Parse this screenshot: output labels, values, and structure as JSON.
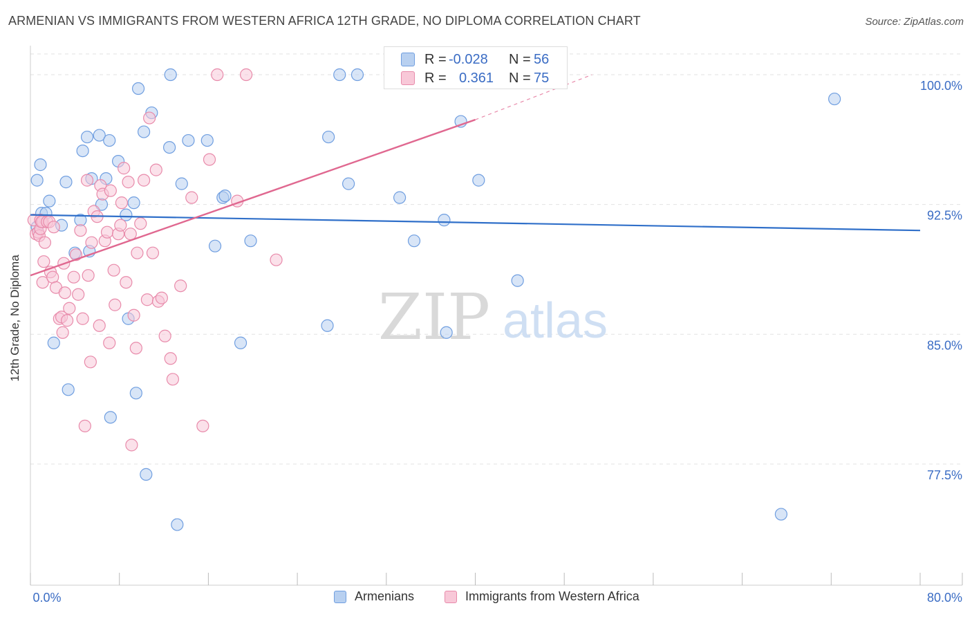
{
  "header": {
    "title": "ARMENIAN VS IMMIGRANTS FROM WESTERN AFRICA 12TH GRADE, NO DIPLOMA CORRELATION CHART",
    "source": "Source: ZipAtlas.com"
  },
  "watermark": {
    "zip": "ZIP",
    "atlas": "atlas"
  },
  "stats_legend": {
    "rows": [
      {
        "r_label": "R =",
        "r_value": "-0.028",
        "n_label": "N =",
        "n_value": "56"
      },
      {
        "r_label": "R =",
        "r_value": "0.361",
        "n_label": "N =",
        "n_value": "75"
      }
    ]
  },
  "colors": {
    "armenians_fill": "#b8d0f0",
    "armenians_stroke": "#6f9ee0",
    "armenians_line": "#2f6fc9",
    "waf_fill": "#f8c8d8",
    "waf_stroke": "#e88aaa",
    "waf_line": "#e06890",
    "tick_label": "#3a6cc4",
    "grid": "#e2e2e2"
  },
  "chart_data": {
    "type": "scatter",
    "title": "ARMENIAN VS IMMIGRANTS FROM WESTERN AFRICA 12TH GRADE, NO DIPLOMA CORRELATION CHART",
    "xlabel": "",
    "ylabel": "12th Grade, No Diploma",
    "xlim": [
      0,
      80
    ],
    "ylim": [
      70.5,
      101.2
    ],
    "x_tick_labels": [
      "0.0%",
      "80.0%"
    ],
    "y_ticks": [
      77.5,
      85.0,
      92.5,
      100.0
    ],
    "y_tick_labels": [
      "77.5%",
      "85.0%",
      "92.5%",
      "100.0%"
    ],
    "grid": true,
    "legend_position": "bottom-center",
    "series": [
      {
        "name": "Armenians",
        "r": -0.028,
        "n": 56,
        "trend": {
          "x": [
            0,
            80
          ],
          "y": [
            91.9,
            91.0
          ]
        },
        "points": [
          [
            1.0,
            92.0
          ],
          [
            0.6,
            91.2
          ],
          [
            0.6,
            93.9
          ],
          [
            0.9,
            94.8
          ],
          [
            1.7,
            92.7
          ],
          [
            1.4,
            92.0
          ],
          [
            2.8,
            91.3
          ],
          [
            3.2,
            93.8
          ],
          [
            3.4,
            81.8
          ],
          [
            4.0,
            89.7
          ],
          [
            4.5,
            91.6
          ],
          [
            4.7,
            95.6
          ],
          [
            5.1,
            96.4
          ],
          [
            5.3,
            89.8
          ],
          [
            5.5,
            94.0
          ],
          [
            6.2,
            96.5
          ],
          [
            6.4,
            92.5
          ],
          [
            6.8,
            94.0
          ],
          [
            7.2,
            80.2
          ],
          [
            7.1,
            96.2
          ],
          [
            7.9,
            95.0
          ],
          [
            8.6,
            91.9
          ],
          [
            8.8,
            85.9
          ],
          [
            9.3,
            92.6
          ],
          [
            9.5,
            81.6
          ],
          [
            9.7,
            99.2
          ],
          [
            10.4,
            76.9
          ],
          [
            10.9,
            97.8
          ],
          [
            10.2,
            96.7
          ],
          [
            12.6,
            100.0
          ],
          [
            12.5,
            95.8
          ],
          [
            13.2,
            74.0
          ],
          [
            13.6,
            93.7
          ],
          [
            14.2,
            96.2
          ],
          [
            15.9,
            96.2
          ],
          [
            16.6,
            90.1
          ],
          [
            17.3,
            92.9
          ],
          [
            17.5,
            93.0
          ],
          [
            18.9,
            84.5
          ],
          [
            19.8,
            90.4
          ],
          [
            26.7,
            85.5
          ],
          [
            26.8,
            96.4
          ],
          [
            27.8,
            100.0
          ],
          [
            28.6,
            93.7
          ],
          [
            29.4,
            100.0
          ],
          [
            32.5,
            100.0
          ],
          [
            33.2,
            92.9
          ],
          [
            34.5,
            90.4
          ],
          [
            37.2,
            91.6
          ],
          [
            37.4,
            85.1
          ],
          [
            38.7,
            97.3
          ],
          [
            40.3,
            93.9
          ],
          [
            43.8,
            88.1
          ],
          [
            2.1,
            84.5
          ],
          [
            67.5,
            74.6
          ],
          [
            72.3,
            98.6
          ]
        ]
      },
      {
        "name": "Immigrants from Western Africa",
        "r": 0.361,
        "n": 75,
        "trend": {
          "x": [
            0,
            40
          ],
          "y": [
            88.4,
            97.4
          ]
        },
        "trend_dashed": {
          "x": [
            40,
            50.5
          ],
          "y": [
            97.4,
            100.0
          ]
        },
        "points": [
          [
            0.3,
            91.6
          ],
          [
            0.5,
            90.8
          ],
          [
            0.7,
            90.9
          ],
          [
            0.8,
            90.7
          ],
          [
            0.9,
            91.1
          ],
          [
            0.9,
            91.6
          ],
          [
            1.1,
            91.5
          ],
          [
            1.0,
            91.5
          ],
          [
            1.1,
            88.0
          ],
          [
            1.2,
            89.2
          ],
          [
            1.3,
            90.3
          ],
          [
            1.5,
            91.5
          ],
          [
            1.7,
            91.5
          ],
          [
            1.8,
            88.6
          ],
          [
            2.0,
            88.3
          ],
          [
            2.1,
            91.2
          ],
          [
            2.3,
            87.7
          ],
          [
            2.6,
            85.9
          ],
          [
            2.8,
            86.0
          ],
          [
            2.9,
            85.1
          ],
          [
            3.0,
            89.1
          ],
          [
            3.1,
            87.4
          ],
          [
            3.5,
            86.5
          ],
          [
            3.9,
            88.3
          ],
          [
            4.1,
            89.6
          ],
          [
            4.3,
            87.3
          ],
          [
            4.5,
            91.0
          ],
          [
            4.7,
            85.9
          ],
          [
            5.1,
            93.9
          ],
          [
            5.2,
            88.4
          ],
          [
            5.4,
            83.4
          ],
          [
            5.5,
            90.3
          ],
          [
            5.7,
            92.1
          ],
          [
            6.0,
            91.8
          ],
          [
            6.2,
            85.5
          ],
          [
            6.3,
            93.6
          ],
          [
            6.5,
            93.1
          ],
          [
            6.7,
            90.4
          ],
          [
            6.9,
            90.9
          ],
          [
            7.1,
            84.5
          ],
          [
            7.2,
            93.3
          ],
          [
            7.5,
            88.7
          ],
          [
            7.6,
            86.7
          ],
          [
            7.9,
            90.8
          ],
          [
            8.1,
            91.3
          ],
          [
            8.2,
            92.6
          ],
          [
            8.4,
            94.6
          ],
          [
            8.6,
            88.0
          ],
          [
            8.8,
            93.8
          ],
          [
            9.0,
            90.8
          ],
          [
            9.3,
            86.1
          ],
          [
            9.5,
            84.2
          ],
          [
            9.6,
            89.7
          ],
          [
            9.9,
            91.4
          ],
          [
            10.2,
            93.9
          ],
          [
            10.5,
            87.0
          ],
          [
            10.7,
            97.5
          ],
          [
            11.0,
            89.7
          ],
          [
            11.3,
            94.5
          ],
          [
            11.5,
            86.9
          ],
          [
            11.8,
            87.1
          ],
          [
            12.1,
            84.9
          ],
          [
            12.6,
            83.6
          ],
          [
            12.8,
            82.4
          ],
          [
            13.5,
            87.8
          ],
          [
            14.5,
            92.9
          ],
          [
            15.5,
            79.7
          ],
          [
            16.1,
            95.1
          ],
          [
            16.8,
            100.0
          ],
          [
            18.6,
            92.7
          ],
          [
            19.4,
            100.0
          ],
          [
            22.1,
            89.3
          ],
          [
            4.9,
            79.7
          ],
          [
            9.1,
            78.6
          ],
          [
            3.3,
            85.8
          ]
        ]
      }
    ]
  },
  "legend": {
    "items": [
      {
        "label": "Armenians"
      },
      {
        "label": "Immigrants from Western Africa"
      }
    ]
  }
}
